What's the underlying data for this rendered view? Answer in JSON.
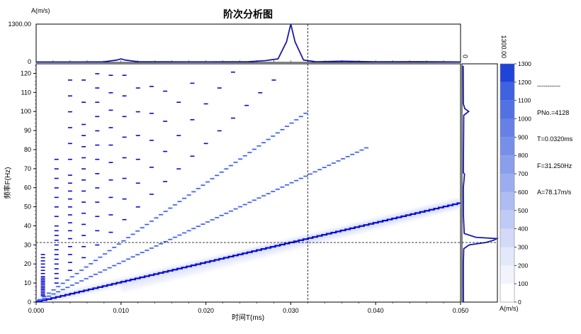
{
  "title": "阶次分析图",
  "readout": {
    "separator": "-----------",
    "pno": "PNo.=4128",
    "t": "T=0.0320ms",
    "f": "F=31.250Hz",
    "a": "A=78.17m/s"
  },
  "colors": {
    "line": "#1a1aa8",
    "dark": "#0a0ad0",
    "mid": "#3c5ae6",
    "light": "#c8d2f5",
    "axis": "#000000"
  },
  "chart_data": {
    "type": "heatmap",
    "xlabel": "时间T(ms)",
    "ylabel": "频率F(Hz)",
    "xlim": [
      0,
      0.05
    ],
    "ylim": [
      0,
      125
    ],
    "x_ticks": [
      "0.000",
      "0.010",
      "0.020",
      "0.030",
      "0.040",
      "0.050"
    ],
    "x_tick_values": [
      0,
      0.01,
      0.02,
      0.03,
      0.04,
      0.05
    ],
    "y_ticks": [
      0,
      10,
      20,
      30,
      40,
      50,
      60,
      70,
      80,
      90,
      100,
      110,
      120
    ],
    "cursor": {
      "t": 0.032,
      "f": 31.25
    },
    "order_lines": [
      {
        "order": 1,
        "slope_hz_per_ms_unit": 1040,
        "t_end": 0.05
      },
      {
        "order": 2,
        "slope_hz_per_ms_unit": 2080,
        "t_end": 0.039
      },
      {
        "order": 3,
        "slope_hz_per_ms_unit": 3120,
        "t_end": 0.032
      }
    ],
    "time_slice": {
      "ylabel": "A(m/s)",
      "ymax_label": "1300.00",
      "ymin_label": "0",
      "ylim": [
        0,
        1300
      ],
      "points": [
        [
          0,
          15
        ],
        [
          0.005,
          15
        ],
        [
          0.008,
          20
        ],
        [
          0.0095,
          80
        ],
        [
          0.01,
          120
        ],
        [
          0.0105,
          80
        ],
        [
          0.012,
          25
        ],
        [
          0.015,
          20
        ],
        [
          0.02,
          18
        ],
        [
          0.025,
          25
        ],
        [
          0.027,
          60
        ],
        [
          0.0285,
          120
        ],
        [
          0.0295,
          700
        ],
        [
          0.03,
          1300
        ],
        [
          0.0305,
          700
        ],
        [
          0.0315,
          80
        ],
        [
          0.033,
          20
        ],
        [
          0.036,
          40
        ],
        [
          0.04,
          20
        ],
        [
          0.045,
          25
        ],
        [
          0.05,
          15
        ]
      ]
    },
    "freq_slice": {
      "xlabel": "A(m/s)",
      "xmin_label": "0",
      "xmax_label": "1300.00",
      "xlim": [
        0,
        1300
      ],
      "points": [
        [
          0,
          30
        ],
        [
          10,
          25
        ],
        [
          20,
          25
        ],
        [
          28,
          40
        ],
        [
          30,
          250
        ],
        [
          31.3,
          900
        ],
        [
          32.5,
          1200
        ],
        [
          33.3,
          1300
        ],
        [
          34,
          500
        ],
        [
          36,
          60
        ],
        [
          45,
          30
        ],
        [
          60,
          25
        ],
        [
          67,
          70
        ],
        [
          68,
          25
        ],
        [
          98,
          40
        ],
        [
          100,
          230
        ],
        [
          101.5,
          80
        ],
        [
          104,
          25
        ],
        [
          124,
          20
        ]
      ]
    },
    "colorbar": {
      "ticks": [
        "0",
        "100",
        "200",
        "300",
        "400",
        "500",
        "600",
        "700",
        "800",
        "900",
        "1000",
        "1100",
        "1200",
        "1300"
      ],
      "range": [
        0,
        1300
      ]
    }
  }
}
